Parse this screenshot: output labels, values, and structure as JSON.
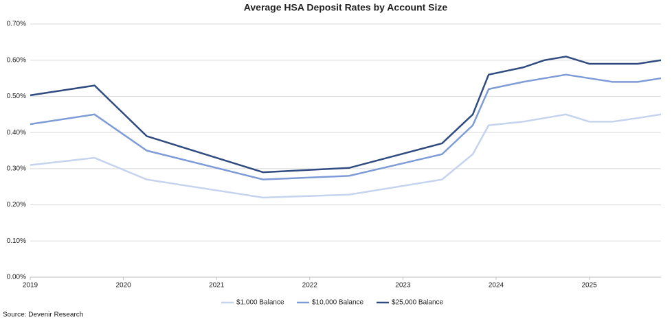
{
  "chart_data": {
    "type": "line",
    "title": "Average HSA Deposit Rates by Account Size",
    "source": "Source: Devenir Research",
    "x": [
      2019.0,
      2019.69,
      2020.25,
      2021.5,
      2022.42,
      2023.42,
      2023.75,
      2023.92,
      2024.29,
      2024.52,
      2024.75,
      2025.0,
      2025.25,
      2025.52,
      2025.77
    ],
    "series": [
      {
        "name": "$1,000 Balance",
        "color": "#c5d3ee",
        "values": [
          0.31,
          0.33,
          0.27,
          0.22,
          0.228,
          0.27,
          0.34,
          0.42,
          0.43,
          0.44,
          0.45,
          0.43,
          0.43,
          0.44,
          0.45
        ]
      },
      {
        "name": "$10,000 Balance",
        "color": "#7d9bd6",
        "values": [
          0.423,
          0.45,
          0.35,
          0.27,
          0.28,
          0.34,
          0.42,
          0.52,
          0.54,
          0.55,
          0.56,
          0.55,
          0.54,
          0.54,
          0.55
        ]
      },
      {
        "name": "$25,000 Balance",
        "color": "#2f4b80",
        "values": [
          0.503,
          0.53,
          0.39,
          0.29,
          0.302,
          0.37,
          0.45,
          0.56,
          0.58,
          0.6,
          0.61,
          0.59,
          0.59,
          0.59,
          0.6
        ]
      }
    ],
    "xlim": [
      2019,
      2025.77
    ],
    "xticks": [
      2019,
      2020,
      2021,
      2022,
      2023,
      2024,
      2025
    ],
    "ylim": [
      0,
      0.7
    ],
    "yticks": [
      {
        "value": 0,
        "label": "0.00%"
      },
      {
        "value": 0.1,
        "label": "0.10%"
      },
      {
        "value": 0.2,
        "label": "0.20%"
      },
      {
        "value": 0.3,
        "label": "0.30%"
      },
      {
        "value": 0.4,
        "label": "0.40%"
      },
      {
        "value": 0.5,
        "label": "0.50%"
      },
      {
        "value": 0.6,
        "label": "0.60%"
      },
      {
        "value": 0.7,
        "label": "0.70%"
      }
    ],
    "grid": true,
    "legend": "bottom"
  }
}
